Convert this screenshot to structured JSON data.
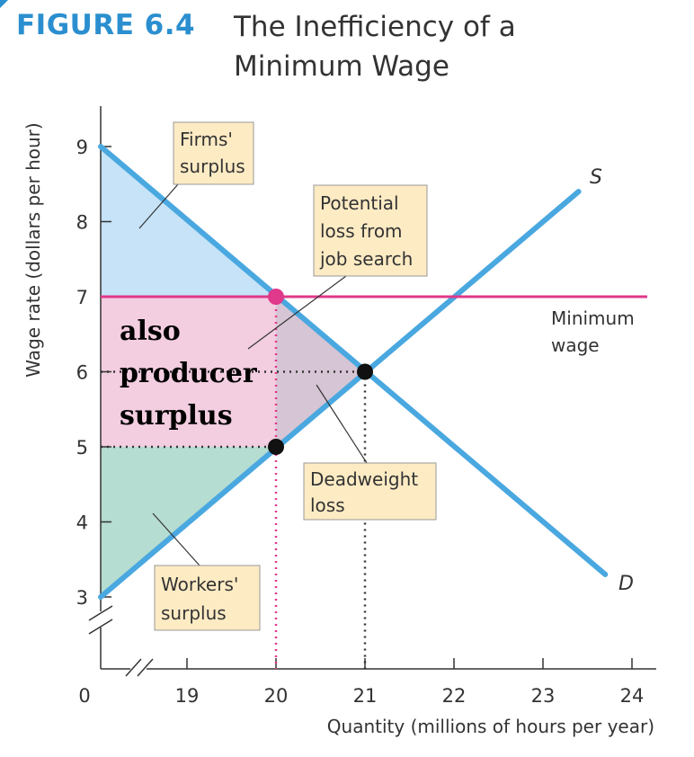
{
  "figure": {
    "number": "FIGURE 6.4",
    "title": "The Inefficiency of a Minimum Wage"
  },
  "chart_data": {
    "type": "line",
    "xlabel": "Quantity (millions of hours per year)",
    "ylabel": "Wage rate (dollars per hour)",
    "x_ticks": [
      "0",
      "19",
      "20",
      "21",
      "22",
      "23",
      "24"
    ],
    "y_ticks": [
      "3",
      "4",
      "5",
      "6",
      "7",
      "8",
      "9"
    ],
    "xlim": [
      19,
      24
    ],
    "ylim": [
      3,
      9
    ],
    "series": [
      {
        "name": "S",
        "points": [
          [
            18,
            3
          ],
          [
            23.4,
            8.4
          ]
        ],
        "color": "#4aa8e0"
      },
      {
        "name": "D",
        "points": [
          [
            18,
            9
          ],
          [
            23.7,
            3.3
          ]
        ],
        "color": "#4aa8e0"
      }
    ],
    "minimum_wage": {
      "value": 7,
      "label_line1": "Minimum",
      "label_line2": "wage",
      "color": "#e0388a"
    },
    "points": [
      {
        "x": 20,
        "y": 7,
        "color": "#e0388a"
      },
      {
        "x": 21,
        "y": 6,
        "color": "#111111"
      },
      {
        "x": 20,
        "y": 5,
        "color": "#111111"
      }
    ],
    "highlight_tick": {
      "x": "20",
      "y": "7",
      "color": "#e0388a"
    },
    "callouts": {
      "firms_surplus": [
        "Firms'",
        "surplus"
      ],
      "potential_loss": [
        "Potential",
        "loss from",
        "job search"
      ],
      "deadweight_loss": [
        "Deadweight",
        "loss"
      ],
      "workers_surplus": [
        "Workers'",
        "surplus"
      ]
    },
    "annotation": [
      "also",
      "producer",
      "surplus"
    ],
    "colors": {
      "curves": "#4aa8e0",
      "firms_surplus": "#c6e3f7",
      "pink_area": "#f3cde0",
      "deadweight": "#d6c5d4",
      "workers_surplus": "#b6ddd2",
      "accent": "#e0388a"
    }
  }
}
